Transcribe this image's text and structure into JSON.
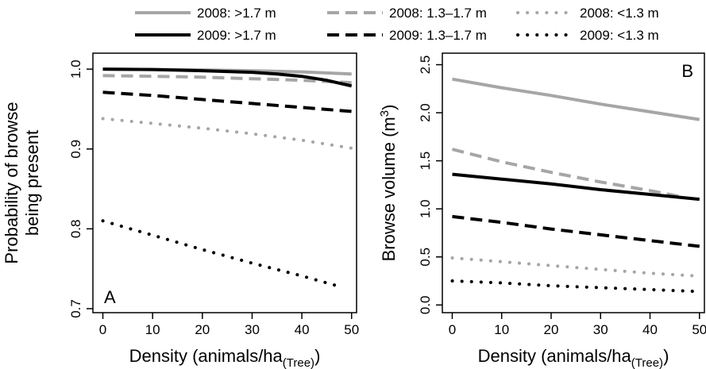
{
  "legend": {
    "entries": [
      {
        "label": "2008: >1.7 m",
        "color": "#a6a6a6",
        "style": "solid"
      },
      {
        "label": "2008: 1.3–1.7 m",
        "color": "#a6a6a6",
        "style": "dashed"
      },
      {
        "label": "2008: <1.3 m",
        "color": "#a6a6a6",
        "style": "dotted"
      },
      {
        "label": "2009: >1.7 m",
        "color": "#000000",
        "style": "solid"
      },
      {
        "label": "2009: 1.3–1.7 m",
        "color": "#000000",
        "style": "dashed"
      },
      {
        "label": "2009: <1.3 m",
        "color": "#000000",
        "style": "dotted"
      }
    ]
  },
  "chart_data": [
    {
      "type": "line",
      "panel_label": "A",
      "xlabel": "Density (animals/ha",
      "xlabel_sub": "(Tree)",
      "xlabel_close": ")",
      "ylabel_line1": "Probability of browse",
      "ylabel_line2": "being present",
      "xlim": [
        -2,
        51
      ],
      "ylim": [
        0.695,
        1.02
      ],
      "xticks": [
        0,
        10,
        20,
        30,
        40,
        50
      ],
      "yticks": [
        0.7,
        0.8,
        0.9,
        1.0
      ],
      "ytick_labels": [
        "0.7",
        "0.8",
        "0.9",
        "1.0"
      ],
      "series": [
        {
          "name": "2008: >1.7 m",
          "color": "#a6a6a6",
          "style": "solid",
          "x": [
            0,
            10,
            20,
            30,
            40,
            50
          ],
          "y": [
            1.0,
            0.9995,
            0.999,
            0.998,
            0.9965,
            0.994
          ]
        },
        {
          "name": "2008: 1.3–1.7 m",
          "color": "#a6a6a6",
          "style": "dashed",
          "x": [
            0,
            10,
            20,
            30,
            40,
            50
          ],
          "y": [
            0.992,
            0.991,
            0.99,
            0.988,
            0.986,
            0.983
          ]
        },
        {
          "name": "2008: <1.3 m",
          "color": "#a6a6a6",
          "style": "dotted",
          "x": [
            0,
            10,
            20,
            30,
            40,
            50
          ],
          "y": [
            0.938,
            0.932,
            0.926,
            0.919,
            0.911,
            0.901
          ]
        },
        {
          "name": "2009: >1.7 m",
          "color": "#000000",
          "style": "solid",
          "x": [
            0,
            10,
            20,
            30,
            35,
            40,
            45,
            50
          ],
          "y": [
            1.0,
            0.9995,
            0.998,
            0.996,
            0.994,
            0.991,
            0.986,
            0.979
          ]
        },
        {
          "name": "2009: 1.3–1.7 m",
          "color": "#000000",
          "style": "dashed",
          "x": [
            0,
            10,
            20,
            30,
            40,
            50
          ],
          "y": [
            0.971,
            0.967,
            0.962,
            0.957,
            0.952,
            0.947
          ]
        },
        {
          "name": "2009: <1.3 m",
          "color": "#000000",
          "style": "dotted",
          "x": [
            0,
            10,
            20,
            30,
            40,
            48
          ],
          "y": [
            0.81,
            0.792,
            0.774,
            0.757,
            0.741,
            0.727
          ]
        }
      ]
    },
    {
      "type": "line",
      "panel_label": "B",
      "xlabel": "Density (animals/ha",
      "xlabel_sub": "(Tree)",
      "xlabel_close": ")",
      "ylabel": "Browse volume (m",
      "ylabel_sup": "3",
      "ylabel_close": ")",
      "xlim": [
        -2,
        51
      ],
      "ylim": [
        -0.08,
        2.62
      ],
      "xticks": [
        0,
        10,
        20,
        30,
        40,
        50
      ],
      "yticks": [
        0.0,
        0.5,
        1.0,
        1.5,
        2.0,
        2.5
      ],
      "ytick_labels": [
        "0.0",
        "0.5",
        "1.0",
        "1.5",
        "2.0",
        "2.5"
      ],
      "series": [
        {
          "name": "2008: >1.7 m",
          "color": "#a6a6a6",
          "style": "solid",
          "x": [
            0,
            10,
            20,
            30,
            40,
            50
          ],
          "y": [
            2.35,
            2.26,
            2.18,
            2.09,
            2.01,
            1.93
          ]
        },
        {
          "name": "2008: 1.3–1.7 m",
          "color": "#a6a6a6",
          "style": "dashed",
          "x": [
            0,
            10,
            20,
            30,
            40,
            47
          ],
          "y": [
            1.62,
            1.49,
            1.38,
            1.28,
            1.19,
            1.12
          ]
        },
        {
          "name": "2008: <1.3 m",
          "color": "#a6a6a6",
          "style": "dotted",
          "x": [
            0,
            10,
            20,
            30,
            40,
            50
          ],
          "y": [
            0.49,
            0.45,
            0.41,
            0.37,
            0.33,
            0.3
          ]
        },
        {
          "name": "2009: >1.7 m",
          "color": "#000000",
          "style": "solid",
          "x": [
            0,
            10,
            20,
            30,
            40,
            50
          ],
          "y": [
            1.36,
            1.31,
            1.26,
            1.2,
            1.15,
            1.1
          ]
        },
        {
          "name": "2009: 1.3–1.7 m",
          "color": "#000000",
          "style": "dashed",
          "x": [
            0,
            10,
            20,
            30,
            40,
            50
          ],
          "y": [
            0.92,
            0.86,
            0.79,
            0.73,
            0.67,
            0.61
          ]
        },
        {
          "name": "2009: <1.3 m",
          "color": "#000000",
          "style": "dotted",
          "x": [
            0,
            10,
            20,
            30,
            40,
            50
          ],
          "y": [
            0.25,
            0.23,
            0.2,
            0.18,
            0.16,
            0.14
          ]
        }
      ]
    }
  ]
}
